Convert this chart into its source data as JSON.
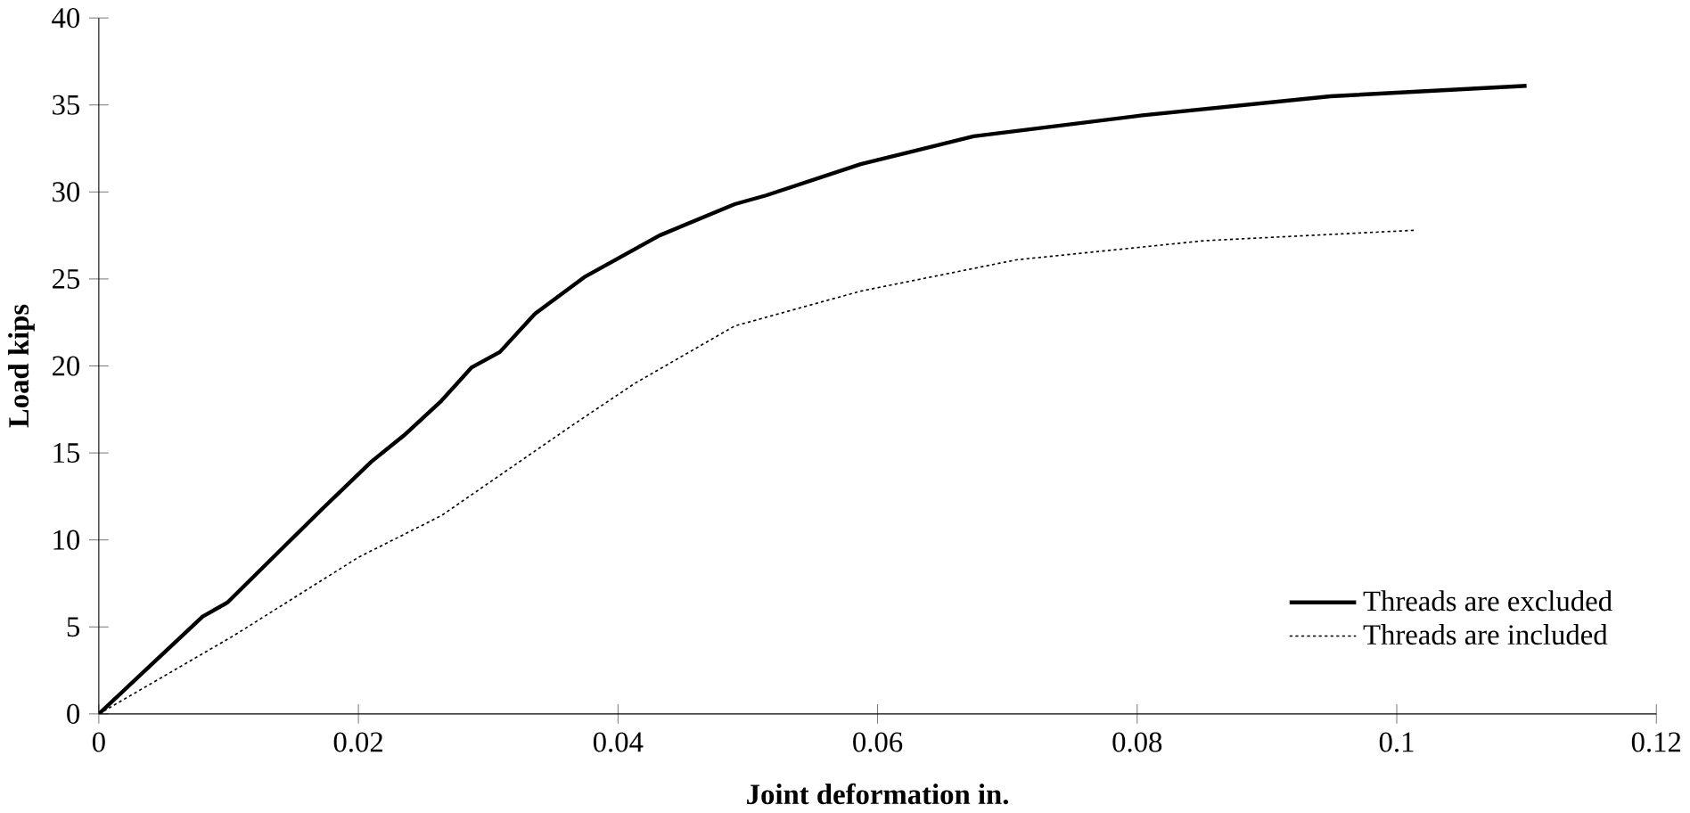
{
  "chart_data": {
    "type": "line",
    "xlabel": "Joint deformation  in.",
    "ylabel": "Load  kips",
    "xlim": [
      0,
      0.12
    ],
    "ylim": [
      0,
      40
    ],
    "xticks": [
      0,
      0.02,
      0.04,
      0.06,
      0.08,
      0.1,
      0.12
    ],
    "yticks": [
      0,
      5,
      10,
      15,
      20,
      25,
      30,
      35,
      40
    ],
    "legend": "bottom right",
    "marker": "none",
    "series": [
      {
        "name": "Threads are excluded",
        "color": "#000000",
        "line_style": "solid",
        "x": [
          0,
          0.008,
          0.0099,
          0.0171,
          0.021,
          0.0235,
          0.0264,
          0.0287,
          0.0309,
          0.0336,
          0.0374,
          0.0432,
          0.049,
          0.0514,
          0.0587,
          0.0674,
          0.0804,
          0.0949,
          0.11
        ],
        "values": [
          0,
          5.6,
          6.4,
          11.7,
          14.5,
          16,
          18,
          19.9,
          20.8,
          23,
          25.1,
          27.5,
          29.3,
          29.8,
          31.6,
          33.2,
          34.4,
          35.5,
          36.1
        ]
      },
      {
        "name": "Threads are included",
        "color": "#000000",
        "line_style": "dotted",
        "x": [
          0,
          0.0104,
          0.02,
          0.0264,
          0.0365,
          0.0413,
          0.049,
          0.0587,
          0.0707,
          0.0852,
          0.1014
        ],
        "values": [
          0,
          4.5,
          9,
          11.4,
          16.6,
          19,
          22.3,
          24.3,
          26.1,
          27.2,
          27.8
        ]
      }
    ]
  }
}
